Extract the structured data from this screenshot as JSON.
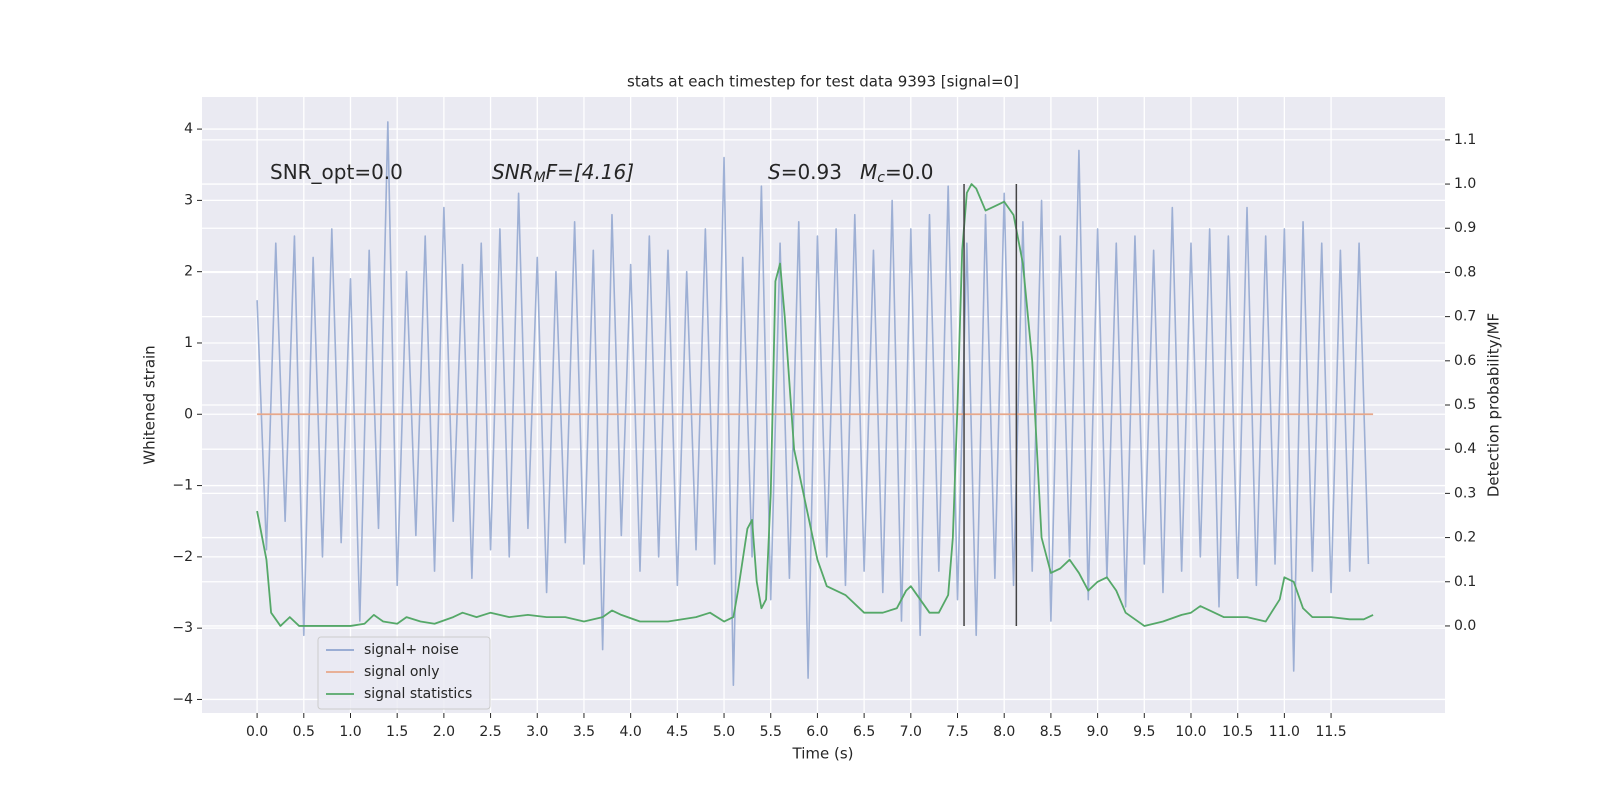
{
  "chart_data": {
    "type": "line",
    "title": "stats at each timestep for test data 9393 [signal=0]",
    "xlabel": "Time (s)",
    "ylabel": "Whitened strain",
    "y2label": "Detection probability/MF",
    "xlim": [
      -0.59,
      12.72
    ],
    "ylim": [
      -4.19,
      4.45
    ],
    "y2lim": [
      -0.197,
      1.197
    ],
    "xticks": [
      {
        "value": 0,
        "label": "0.0"
      },
      0.5,
      {
        "value": 1,
        "label": "1.0"
      },
      1.5,
      {
        "value": 2,
        "label": "2.0"
      },
      2.5,
      {
        "value": 3,
        "label": "3.0"
      },
      3.5,
      {
        "value": 4,
        "label": "4.0"
      },
      4.5,
      {
        "value": 5,
        "label": "5.0"
      },
      5.5,
      {
        "value": 6,
        "label": "6.0"
      },
      6.5,
      {
        "value": 7,
        "label": "7.0"
      },
      7.5,
      {
        "value": 8,
        "label": "8.0"
      },
      8.5,
      {
        "value": 9,
        "label": "9.0"
      },
      9.5,
      {
        "value": 10,
        "label": "10.0"
      },
      10.5,
      {
        "value": 11,
        "label": "11.0"
      },
      11.5
    ],
    "yticks": [
      -4,
      -3,
      -2,
      -1,
      0,
      1,
      2,
      3,
      4
    ],
    "y2ticks": [
      {
        "value": 0,
        "label": "0.0"
      },
      0.1,
      0.2,
      0.3,
      0.4,
      0.5,
      0.6,
      0.7,
      0.8,
      0.9,
      {
        "value": 1,
        "label": "1.0"
      },
      1.1
    ],
    "grid": true,
    "legend": "lower left",
    "series": [
      {
        "name": "signal+ noise",
        "color": "#8fa4cf",
        "x": [
          0,
          0.1,
          0.2,
          0.3,
          0.4,
          0.5,
          0.6,
          0.7,
          0.8,
          0.9,
          1,
          1.1,
          1.2,
          1.3,
          1.4,
          1.5,
          1.6,
          1.7,
          1.8,
          1.9,
          2,
          2.1,
          2.2,
          2.3,
          2.4,
          2.5,
          2.6,
          2.7,
          2.8,
          2.9,
          3,
          3.1,
          3.2,
          3.3,
          3.4,
          3.5,
          3.6,
          3.7,
          3.8,
          3.9,
          4,
          4.1,
          4.2,
          4.3,
          4.4,
          4.5,
          4.6,
          4.7,
          4.8,
          4.9,
          5,
          5.1,
          5.2,
          5.3,
          5.4,
          5.5,
          5.6,
          5.7,
          5.8,
          5.9,
          6,
          6.1,
          6.2,
          6.3,
          6.4,
          6.5,
          6.6,
          6.7,
          6.8,
          6.9,
          7,
          7.1,
          7.2,
          7.3,
          7.4,
          7.5,
          7.6,
          7.7,
          7.8,
          7.9,
          8,
          8.1,
          8.2,
          8.3,
          8.4,
          8.5,
          8.6,
          8.7,
          8.8,
          8.9,
          9,
          9.1,
          9.2,
          9.3,
          9.4,
          9.5,
          9.6,
          9.7,
          9.8,
          9.9,
          10,
          10.1,
          10.2,
          10.3,
          10.4,
          10.5,
          10.6,
          10.7,
          10.8,
          10.9,
          11,
          11.1,
          11.2,
          11.3,
          11.4,
          11.5,
          11.6,
          11.7,
          11.8,
          11.9
        ],
        "values": [
          1.6,
          -1.9,
          2.4,
          -1.5,
          2.5,
          -3.1,
          2.2,
          -2.0,
          2.6,
          -1.8,
          1.9,
          -2.9,
          2.3,
          -1.6,
          4.1,
          -2.4,
          2.0,
          -1.7,
          2.5,
          -2.2,
          2.9,
          -1.5,
          2.1,
          -2.3,
          2.4,
          -1.9,
          2.6,
          -2.0,
          3.1,
          -1.6,
          2.2,
          -2.5,
          2.0,
          -1.8,
          2.7,
          -2.1,
          2.3,
          -3.3,
          2.8,
          -1.7,
          2.1,
          -2.2,
          2.5,
          -2.0,
          2.3,
          -2.4,
          2.0,
          -1.9,
          2.6,
          -2.1,
          3.6,
          -3.8,
          2.2,
          -2.0,
          3.2,
          -2.6,
          2.4,
          -2.3,
          2.7,
          -3.7,
          2.5,
          -2.0,
          2.6,
          -2.4,
          2.8,
          -2.2,
          2.3,
          -2.5,
          3.0,
          -2.9,
          2.6,
          -3.1,
          2.8,
          -2.2,
          3.2,
          -2.6,
          2.4,
          -3.1,
          2.8,
          -2.3,
          3.1,
          -2.4,
          2.7,
          -2.2,
          3.0,
          -2.9,
          2.5,
          -2.0,
          3.7,
          -2.6,
          2.6,
          -2.3,
          2.4,
          -2.7,
          2.5,
          -2.1,
          2.3,
          -2.5,
          2.9,
          -2.2,
          2.4,
          -2.0,
          2.6,
          -2.7,
          2.5,
          -2.3,
          2.9,
          -2.4,
          2.5,
          -2.1,
          2.6,
          -3.6,
          2.7,
          -2.2,
          2.4,
          -2.5,
          2.3,
          -2.2,
          2.4,
          -2.1
        ]
      },
      {
        "name": "signal only",
        "color": "#e8a88a",
        "x": [
          0,
          11.95
        ],
        "values": [
          0,
          0
        ]
      },
      {
        "name": "signal statistics",
        "color": "#55a868",
        "axis": "y2",
        "x": [
          0,
          0.1,
          0.15,
          0.25,
          0.35,
          0.45,
          0.6,
          0.8,
          1.0,
          1.15,
          1.25,
          1.35,
          1.5,
          1.6,
          1.75,
          1.9,
          2.1,
          2.2,
          2.35,
          2.5,
          2.7,
          2.9,
          3.1,
          3.3,
          3.5,
          3.7,
          3.8,
          3.9,
          4.1,
          4.4,
          4.7,
          4.85,
          5.0,
          5.1,
          5.15,
          5.25,
          5.3,
          5.35,
          5.4,
          5.45,
          5.5,
          5.55,
          5.6,
          5.65,
          5.75,
          5.9,
          6.0,
          6.1,
          6.3,
          6.5,
          6.7,
          6.85,
          6.95,
          7.0,
          7.1,
          7.2,
          7.3,
          7.4,
          7.45,
          7.5,
          7.55,
          7.6,
          7.65,
          7.7,
          7.8,
          7.9,
          8.0,
          8.1,
          8.2,
          8.3,
          8.4,
          8.5,
          8.6,
          8.7,
          8.8,
          8.9,
          9.0,
          9.1,
          9.2,
          9.3,
          9.5,
          9.7,
          9.9,
          10.0,
          10.1,
          10.2,
          10.35,
          10.6,
          10.8,
          10.95,
          11.0,
          11.1,
          11.2,
          11.3,
          11.5,
          11.7,
          11.85,
          11.95
        ],
        "values": [
          0.26,
          0.15,
          0.03,
          0.0,
          0.02,
          0.0,
          0.0,
          0.0,
          0.0,
          0.005,
          0.025,
          0.01,
          0.005,
          0.02,
          0.01,
          0.005,
          0.02,
          0.03,
          0.02,
          0.03,
          0.02,
          0.025,
          0.02,
          0.02,
          0.01,
          0.02,
          0.035,
          0.025,
          0.01,
          0.01,
          0.02,
          0.03,
          0.01,
          0.02,
          0.08,
          0.22,
          0.24,
          0.1,
          0.04,
          0.06,
          0.3,
          0.78,
          0.82,
          0.7,
          0.4,
          0.25,
          0.15,
          0.09,
          0.07,
          0.03,
          0.03,
          0.04,
          0.08,
          0.09,
          0.06,
          0.03,
          0.03,
          0.07,
          0.2,
          0.5,
          0.85,
          0.98,
          1.0,
          0.99,
          0.94,
          0.95,
          0.96,
          0.93,
          0.82,
          0.6,
          0.2,
          0.12,
          0.13,
          0.15,
          0.12,
          0.08,
          0.1,
          0.11,
          0.08,
          0.03,
          0.0,
          0.01,
          0.025,
          0.03,
          0.045,
          0.035,
          0.02,
          0.02,
          0.01,
          0.06,
          0.11,
          0.1,
          0.04,
          0.02,
          0.02,
          0.015,
          0.015,
          0.025
        ]
      }
    ],
    "vlines": [
      {
        "x": 7.57,
        "ymin": 0,
        "ymax": 1.0
      },
      {
        "x": 8.13,
        "ymin": 0,
        "ymax": 1.0
      }
    ],
    "vline_color": "#444444",
    "annotations": [
      {
        "text": "SNR_opt=0.0"
      },
      {
        "main": "SNR",
        "sub": "M",
        "rest": "F=[4.16]"
      },
      {
        "main": "S",
        "rest": "=0.93"
      },
      {
        "main": "M",
        "sub": "c",
        "rest": "=0.0"
      }
    ]
  }
}
